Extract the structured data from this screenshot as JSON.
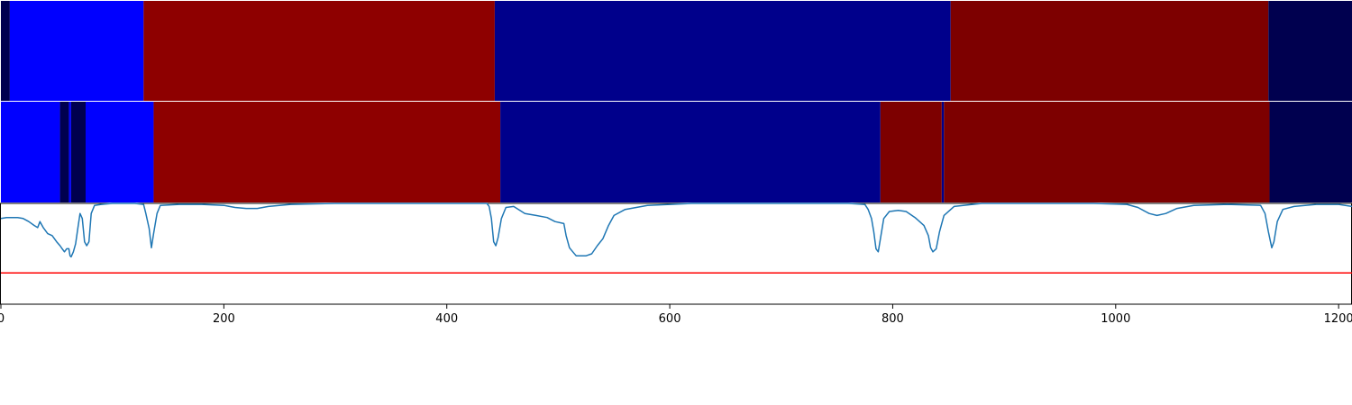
{
  "chart_data": [
    {
      "type": "heatmap",
      "panel": "segmentation-track-1",
      "xlim": [
        0,
        1212
      ],
      "segments": [
        {
          "start": 0,
          "end": 8,
          "color": "#00004f"
        },
        {
          "start": 8,
          "end": 128,
          "color": "#0000ff"
        },
        {
          "start": 128,
          "end": 443,
          "color": "#8e0000"
        },
        {
          "start": 443,
          "end": 852,
          "color": "#00008b"
        },
        {
          "start": 852,
          "end": 1137,
          "color": "#7d0000"
        },
        {
          "start": 1137,
          "end": 1212,
          "color": "#00004f"
        }
      ]
    },
    {
      "type": "heatmap",
      "panel": "segmentation-track-2",
      "xlim": [
        0,
        1212
      ],
      "segments": [
        {
          "start": 0,
          "end": 53,
          "color": "#0000ff"
        },
        {
          "start": 53,
          "end": 61,
          "color": "#00004f"
        },
        {
          "start": 61,
          "end": 63,
          "color": "#0000ff"
        },
        {
          "start": 63,
          "end": 76,
          "color": "#00004f"
        },
        {
          "start": 76,
          "end": 137,
          "color": "#0000ff"
        },
        {
          "start": 137,
          "end": 448,
          "color": "#8e0000"
        },
        {
          "start": 448,
          "end": 789,
          "color": "#00008b"
        },
        {
          "start": 789,
          "end": 844,
          "color": "#7d0000"
        },
        {
          "start": 844,
          "end": 846,
          "color": "#00008b"
        },
        {
          "start": 846,
          "end": 1138,
          "color": "#7d0000"
        },
        {
          "start": 1138,
          "end": 1212,
          "color": "#00004f"
        }
      ]
    },
    {
      "type": "line",
      "panel": "signal-track",
      "xlim": [
        0,
        1212
      ],
      "ylim": [
        0,
        1
      ],
      "grid": false,
      "threshold": {
        "value": 0.31,
        "color": "#ff0000"
      },
      "series": [
        {
          "color": "#1f77b4",
          "points": [
            [
              0,
              0.85
            ],
            [
              5,
              0.86
            ],
            [
              10,
              0.86
            ],
            [
              15,
              0.86
            ],
            [
              20,
              0.85
            ],
            [
              25,
              0.82
            ],
            [
              30,
              0.78
            ],
            [
              33,
              0.76
            ],
            [
              35,
              0.82
            ],
            [
              38,
              0.76
            ],
            [
              42,
              0.7
            ],
            [
              46,
              0.68
            ],
            [
              50,
              0.62
            ],
            [
              53,
              0.58
            ],
            [
              55,
              0.55
            ],
            [
              57,
              0.52
            ],
            [
              59,
              0.55
            ],
            [
              61,
              0.55
            ],
            [
              62,
              0.48
            ],
            [
              63,
              0.47
            ],
            [
              65,
              0.52
            ],
            [
              67,
              0.6
            ],
            [
              69,
              0.75
            ],
            [
              71,
              0.9
            ],
            [
              73,
              0.85
            ],
            [
              75,
              0.62
            ],
            [
              77,
              0.58
            ],
            [
              79,
              0.62
            ],
            [
              81,
              0.9
            ],
            [
              84,
              0.98
            ],
            [
              90,
              0.99
            ],
            [
              100,
              1
            ],
            [
              120,
              1
            ],
            [
              128,
              0.99
            ],
            [
              130,
              0.9
            ],
            [
              133,
              0.75
            ],
            [
              135,
              0.56
            ],
            [
              137,
              0.7
            ],
            [
              140,
              0.9
            ],
            [
              143,
              0.98
            ],
            [
              160,
              0.99
            ],
            [
              180,
              0.99
            ],
            [
              200,
              0.98
            ],
            [
              210,
              0.96
            ],
            [
              220,
              0.95
            ],
            [
              230,
              0.95
            ],
            [
              240,
              0.97
            ],
            [
              260,
              0.99
            ],
            [
              300,
              1
            ],
            [
              400,
              1
            ],
            [
              436,
              1
            ],
            [
              438,
              0.97
            ],
            [
              440,
              0.85
            ],
            [
              442,
              0.62
            ],
            [
              444,
              0.58
            ],
            [
              446,
              0.66
            ],
            [
              449,
              0.85
            ],
            [
              453,
              0.96
            ],
            [
              460,
              0.97
            ],
            [
              470,
              0.9
            ],
            [
              480,
              0.88
            ],
            [
              490,
              0.86
            ],
            [
              497,
              0.82
            ],
            [
              505,
              0.8
            ],
            [
              507,
              0.68
            ],
            [
              510,
              0.56
            ],
            [
              513,
              0.52
            ],
            [
              516,
              0.48
            ],
            [
              520,
              0.48
            ],
            [
              525,
              0.48
            ],
            [
              530,
              0.5
            ],
            [
              535,
              0.58
            ],
            [
              540,
              0.65
            ],
            [
              545,
              0.78
            ],
            [
              550,
              0.88
            ],
            [
              560,
              0.94
            ],
            [
              580,
              0.98
            ],
            [
              620,
              1
            ],
            [
              760,
              1
            ],
            [
              775,
              0.99
            ],
            [
              778,
              0.94
            ],
            [
              781,
              0.85
            ],
            [
              783,
              0.72
            ],
            [
              785,
              0.55
            ],
            [
              787,
              0.52
            ],
            [
              789,
              0.65
            ],
            [
              792,
              0.85
            ],
            [
              797,
              0.92
            ],
            [
              805,
              0.93
            ],
            [
              812,
              0.92
            ],
            [
              820,
              0.86
            ],
            [
              828,
              0.78
            ],
            [
              832,
              0.68
            ],
            [
              834,
              0.56
            ],
            [
              836,
              0.52
            ],
            [
              839,
              0.55
            ],
            [
              842,
              0.72
            ],
            [
              846,
              0.88
            ],
            [
              855,
              0.97
            ],
            [
              880,
              1
            ],
            [
              980,
              1
            ],
            [
              1010,
              0.99
            ],
            [
              1020,
              0.96
            ],
            [
              1030,
              0.9
            ],
            [
              1037,
              0.88
            ],
            [
              1045,
              0.9
            ],
            [
              1055,
              0.95
            ],
            [
              1070,
              0.98
            ],
            [
              1100,
              0.99
            ],
            [
              1130,
              0.98
            ],
            [
              1134,
              0.9
            ],
            [
              1137,
              0.72
            ],
            [
              1140,
              0.56
            ],
            [
              1142,
              0.62
            ],
            [
              1145,
              0.82
            ],
            [
              1150,
              0.94
            ],
            [
              1160,
              0.97
            ],
            [
              1180,
              0.99
            ],
            [
              1200,
              0.99
            ],
            [
              1212,
              0.97
            ]
          ]
        }
      ]
    },
    {
      "type": "axis",
      "panel": "x-axis",
      "xlim": [
        0,
        1212
      ],
      "ticks": [
        0,
        200,
        400,
        600,
        800,
        1000,
        1200
      ],
      "tick_labels": [
        "0",
        "200",
        "400",
        "600",
        "800",
        "1000",
        "1200"
      ]
    }
  ]
}
